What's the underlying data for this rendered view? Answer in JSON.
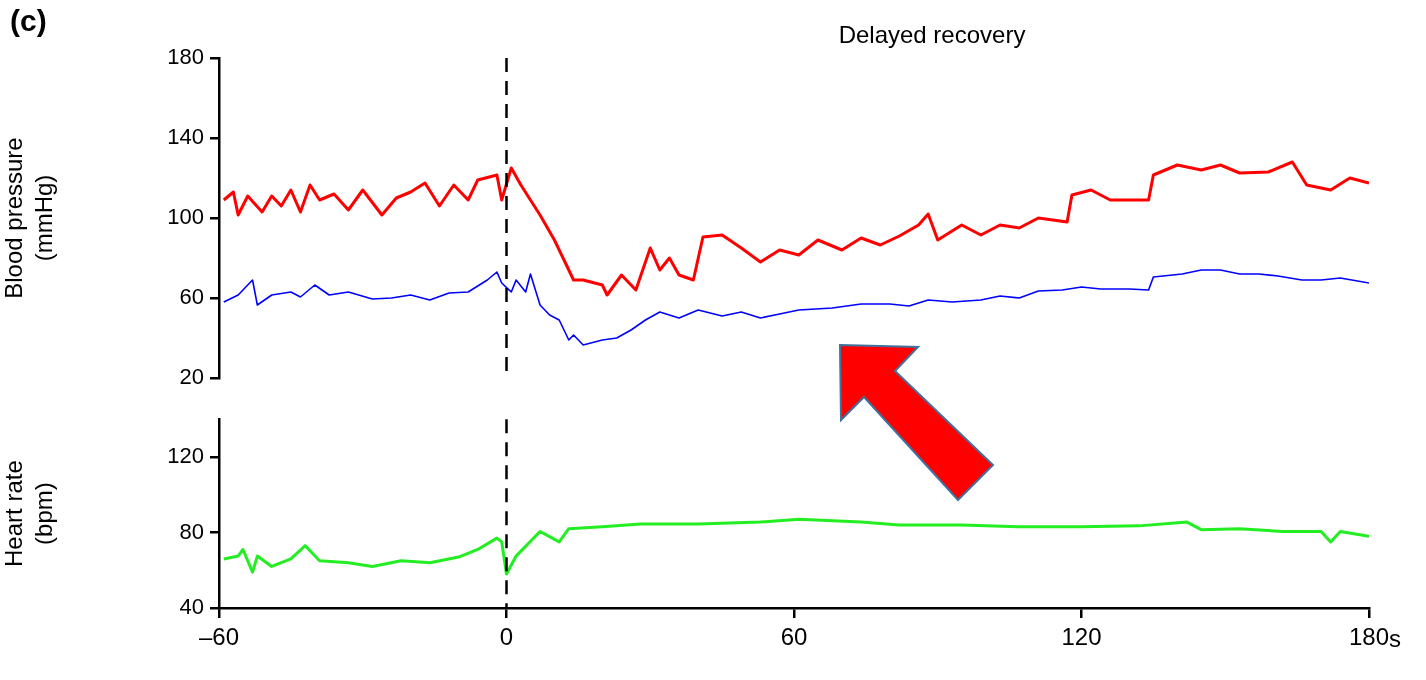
{
  "chart_data": [
    {
      "type": "line",
      "title": "Delayed recovery",
      "annotations": [
        "(c)"
      ],
      "ylabel": "Blood pressure (mmHg)",
      "xlim": [
        -60,
        180
      ],
      "ylim": [
        20,
        180
      ],
      "yticks": [
        20,
        60,
        100,
        140,
        180
      ],
      "tick_labels": "y",
      "ref_lines": [
        {
          "axis": "x",
          "value": 0,
          "line_style": "dashed",
          "color": "#000000"
        }
      ],
      "series": [
        {
          "color": "#ff0000",
          "x": [
            -59,
            -57,
            -56,
            -54,
            -51,
            -49,
            -47,
            -45,
            -43,
            -41,
            -39,
            -36,
            -33,
            -30,
            -26,
            -23,
            -20,
            -17,
            -14,
            -11,
            -8,
            -6,
            -2,
            -1,
            1,
            3,
            5,
            7,
            10,
            12,
            14,
            16,
            20,
            21,
            24,
            27,
            30,
            32,
            34,
            36,
            39,
            41,
            45,
            49,
            53,
            57,
            61,
            65,
            70,
            74,
            78,
            82,
            86,
            88,
            90,
            95,
            99,
            103,
            107,
            111,
            117,
            118,
            122,
            126,
            130,
            134,
            135,
            140,
            145,
            149,
            153,
            159,
            164,
            167,
            172,
            176,
            180
          ],
          "values": [
            109,
            113,
            101.5,
            111,
            103,
            111,
            106,
            114,
            103,
            116.5,
            109,
            112,
            104,
            114,
            101.5,
            110,
            113,
            117.5,
            106,
            116.5,
            109,
            119,
            121.5,
            109,
            125,
            116.5,
            109,
            101.5,
            89,
            79,
            69,
            69,
            66.5,
            61.5,
            71.5,
            64,
            85,
            74,
            80,
            71.5,
            69,
            90.5,
            91.5,
            85,
            78,
            84,
            81.5,
            89,
            84,
            90,
            86.5,
            91,
            96.5,
            102,
            89,
            96.5,
            91.5,
            96.5,
            95,
            100,
            98,
            111.5,
            114,
            109,
            109,
            109,
            121.5,
            126.5,
            124,
            126.5,
            122.5,
            123,
            128,
            116.5,
            114,
            120,
            117.5
          ]
        },
        {
          "color": "#0000ff",
          "x": [
            -59,
            -56,
            -53,
            -52,
            -49,
            -45,
            -43,
            -40,
            -37,
            -33,
            -28,
            -24,
            -20,
            -16,
            -12,
            -8,
            -4,
            -2,
            -1,
            1,
            2,
            4,
            5,
            7,
            9,
            11,
            13,
            14,
            16,
            20,
            23,
            26,
            29,
            32,
            36,
            40,
            45,
            49,
            53,
            57,
            61,
            68,
            74,
            80,
            84,
            88,
            93,
            99,
            103,
            107,
            111,
            116,
            120,
            124,
            130,
            134,
            135,
            141,
            145,
            149,
            153,
            157,
            161,
            166,
            170,
            174,
            180
          ],
          "values": [
            58,
            61.5,
            69,
            56.5,
            61.5,
            63,
            60.5,
            66.5,
            61.5,
            63,
            59.5,
            60,
            61.5,
            59,
            62.5,
            63,
            69,
            73,
            67.5,
            63,
            69,
            63,
            72,
            56.5,
            51.5,
            49,
            39,
            41.5,
            36.5,
            39,
            40,
            44,
            49,
            53,
            50,
            54,
            51,
            53,
            50,
            52,
            54,
            55,
            57,
            57,
            56,
            59,
            58,
            59,
            61,
            60,
            63.5,
            64,
            65.5,
            64.5,
            64.5,
            64,
            70.5,
            72,
            74,
            74,
            72,
            72,
            71,
            69,
            69,
            70,
            67.5
          ]
        }
      ]
    },
    {
      "type": "line",
      "ylabel": "Heart rate (bpm)",
      "xlabel": "s",
      "xlim": [
        -60,
        180
      ],
      "xticks": [
        {
          "value": -60,
          "label": "–60"
        },
        0,
        60,
        120,
        180
      ],
      "ylim": [
        40,
        140
      ],
      "yticks": [
        40,
        80,
        120
      ],
      "ref_lines": [
        {
          "axis": "x",
          "value": 0,
          "line_style": "dashed",
          "color": "#000000"
        }
      ],
      "series": [
        {
          "color": "#22ee22",
          "x": [
            -59,
            -56,
            -55,
            -53,
            -52,
            -49,
            -45,
            -42,
            -39,
            -33,
            -28,
            -22,
            -16,
            -10,
            -6,
            -2,
            -1,
            0,
            2,
            7,
            11,
            13,
            20,
            28,
            40,
            53,
            61,
            74,
            82,
            95,
            107,
            120,
            132,
            142,
            145,
            153,
            162,
            170,
            172,
            174,
            180
          ],
          "values": [
            66,
            67.5,
            71,
            59,
            67.5,
            62,
            66,
            73,
            65,
            64,
            62,
            65,
            64,
            67,
            71,
            77,
            75,
            58,
            67.5,
            80.5,
            75,
            82,
            83,
            84.5,
            84.5,
            85.5,
            87,
            85.5,
            84,
            84,
            83,
            83,
            83.5,
            85.5,
            81.5,
            82,
            80.5,
            80.5,
            75,
            80.5,
            78
          ]
        }
      ]
    }
  ]
}
